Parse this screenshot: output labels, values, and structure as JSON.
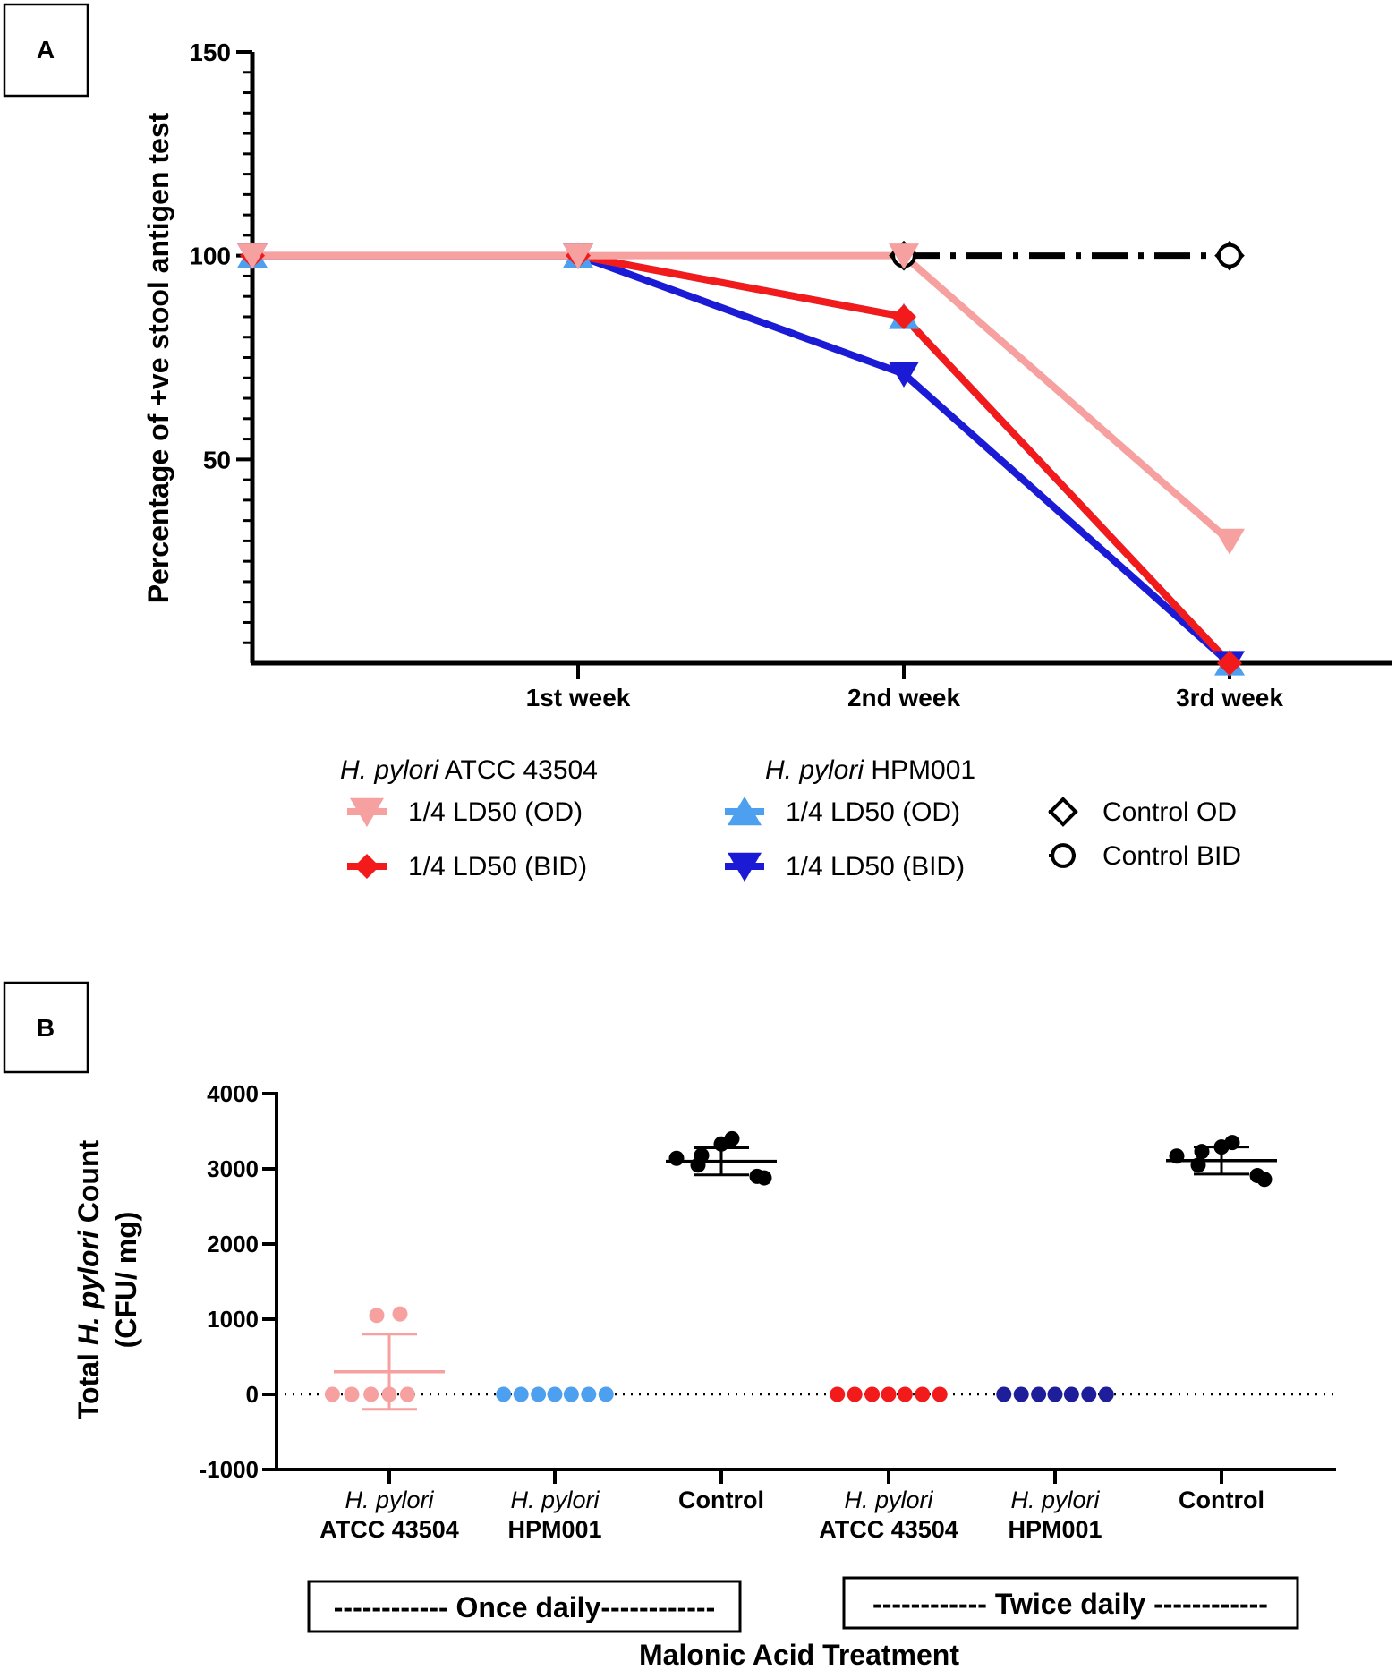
{
  "panels": {
    "a_label": "A",
    "b_label": "B"
  },
  "colors": {
    "pink": "#f6a0a0",
    "red": "#f21a1a",
    "lightblue": "#4d9fef",
    "darkblue": "#1b1bd6",
    "navy": "#1e1e9a",
    "black": "#000000"
  },
  "chart_data": [
    {
      "type": "line",
      "ylabel": "Percentage of +ve stool antigen test",
      "ylim": [
        0,
        150
      ],
      "yticks": [
        50,
        100,
        150
      ],
      "categories": [
        "",
        "1st week",
        "2nd week",
        "3rd week"
      ],
      "legend_groups": [
        "H. pylori ATCC 43504",
        "H. pylori HPM001"
      ],
      "series": [
        {
          "name": "1/4 LD50 (OD)",
          "group": "H. pylori ATCC 43504",
          "color": "pink",
          "marker": "triangle-down",
          "values": [
            100,
            100,
            100,
            30
          ]
        },
        {
          "name": "1/4 LD50 (BID)",
          "group": "H. pylori ATCC 43504",
          "color": "red",
          "marker": "diamond",
          "values": [
            100,
            100,
            85,
            0
          ]
        },
        {
          "name": "1/4 LD50 (OD)",
          "group": "H. pylori HPM001",
          "color": "lightblue",
          "marker": "triangle-up",
          "values": [
            100,
            100,
            85,
            0
          ]
        },
        {
          "name": "1/4 LD50 (BID)",
          "group": "H. pylori HPM001",
          "color": "darkblue",
          "marker": "triangle-down",
          "values": [
            100,
            100,
            71,
            0
          ]
        },
        {
          "name": "Control OD",
          "group": "",
          "color": "black",
          "marker": "diamond-open",
          "values": [
            null,
            null,
            100,
            100
          ]
        },
        {
          "name": "Control BID",
          "group": "",
          "color": "black",
          "marker": "circle-open",
          "values": [
            null,
            null,
            100,
            100
          ]
        }
      ]
    },
    {
      "type": "scatter",
      "ylabel_parts": [
        "Total ",
        "H. pylori",
        " Count"
      ],
      "ylabel2": "(CFU/ mg)",
      "ylim": [
        -1000,
        4000
      ],
      "yticks": [
        -1000,
        0,
        1000,
        2000,
        3000,
        4000
      ],
      "xlabel": "Malonic Acid Treatment",
      "brackets": [
        "------------ Once daily------------",
        "------------ Twice daily ------------"
      ],
      "groups": [
        {
          "line1": "H. pylori",
          "line2": "ATCC 43504",
          "color": "pink",
          "mean": 300,
          "sd": 500,
          "values": [
            0,
            0,
            0,
            0,
            0,
            1050,
            1070
          ]
        },
        {
          "line1": "H. pylori",
          "line2": "HPM001",
          "color": "lightblue",
          "mean": 0,
          "sd": 0,
          "values": [
            0,
            0,
            0,
            0,
            0,
            0,
            0
          ]
        },
        {
          "line1": "",
          "line2": "Control",
          "color": "black",
          "mean": 3100,
          "sd": 180,
          "values": [
            3140,
            3180,
            3330,
            3400,
            3050,
            2900,
            2880
          ]
        },
        {
          "line1": "H. pylori",
          "line2": "ATCC 43504",
          "color": "red",
          "mean": 0,
          "sd": 0,
          "values": [
            0,
            0,
            0,
            0,
            0,
            0,
            0
          ]
        },
        {
          "line1": "H. pylori",
          "line2": "HPM001",
          "color": "navy",
          "mean": 0,
          "sd": 0,
          "values": [
            0,
            0,
            0,
            0,
            0,
            0,
            0
          ]
        },
        {
          "line1": "",
          "line2": "Control",
          "color": "black",
          "mean": 3110,
          "sd": 180,
          "values": [
            3170,
            3230,
            3290,
            3350,
            3050,
            2910,
            2860
          ]
        }
      ]
    }
  ]
}
